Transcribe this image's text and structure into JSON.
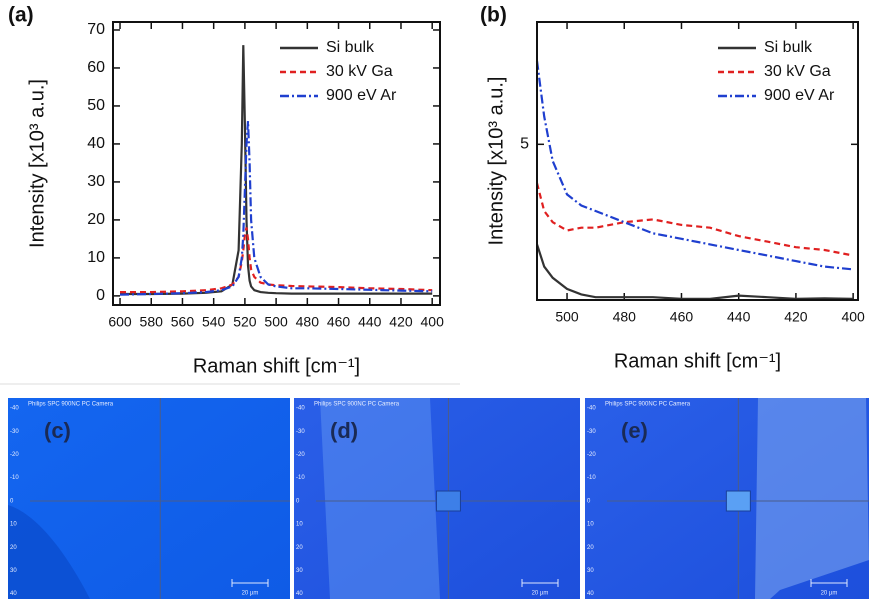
{
  "chart_data": [
    {
      "type": "line",
      "panel_label": "(a)",
      "x_label": "Raman shift [cm⁻¹]",
      "y_label": "Intensity [x10³ a.u.]",
      "xlim": [
        604.5,
        395
      ],
      "xticks": [
        600,
        580,
        560,
        540,
        520,
        500,
        480,
        460,
        440,
        420,
        400
      ],
      "ylim": [
        -2.4,
        72.1
      ],
      "yticks": [
        0,
        10,
        20,
        30,
        40,
        50,
        60,
        70
      ],
      "legend": "upper right",
      "x": [
        600,
        580,
        560,
        545,
        535,
        528,
        524,
        522,
        521,
        520,
        519,
        518,
        517,
        516,
        514,
        510,
        505,
        500,
        490,
        480,
        460,
        440,
        420,
        400
      ],
      "series": [
        {
          "name": "Si bulk",
          "color": "#333333",
          "dash": "solid",
          "values": [
            0.5,
            0.5,
            0.6,
            0.8,
            1.2,
            3,
            12,
            40,
            66,
            45,
            20,
            8,
            4,
            2.5,
            1.5,
            1,
            0.8,
            0.7,
            0.6,
            0.6,
            0.6,
            0.6,
            0.6,
            0.6
          ]
        },
        {
          "name": "30 kV Ga",
          "color": "#e02020",
          "dash": "dashed",
          "values": [
            1,
            1,
            1.2,
            1.5,
            2,
            3,
            5,
            9,
            12,
            16,
            18,
            15,
            10,
            7,
            5,
            3.5,
            3,
            2.8,
            2.6,
            2.5,
            2.3,
            2,
            1.8,
            1.5
          ]
        },
        {
          "name": "900 eV Ar",
          "color": "#1f3fcf",
          "dash": "dashdot",
          "values": [
            0.3,
            0.5,
            0.7,
            1,
            1.5,
            2.5,
            5,
            10,
            16,
            28,
            40,
            46,
            35,
            20,
            10,
            5,
            3,
            2.5,
            2,
            2,
            1.8,
            1.6,
            1.4,
            1.2
          ]
        }
      ]
    },
    {
      "type": "line",
      "panel_label": "(b)",
      "x_label": "Raman shift [cm⁻¹]",
      "y_label": "Intensity [x10³ a.u.]",
      "xlim": [
        510.5,
        398.3
      ],
      "xticks": [
        500,
        480,
        460,
        440,
        420,
        400
      ],
      "ylim": [
        2.2,
        7.2
      ],
      "yticks": [
        5
      ],
      "legend": "upper right",
      "x": [
        510.5,
        508,
        505,
        500,
        495,
        490,
        480,
        470,
        460,
        450,
        440,
        430,
        420,
        410,
        400
      ],
      "series": [
        {
          "name": "Si bulk",
          "color": "#333333",
          "dash": "solid",
          "values": [
            3.2,
            2.8,
            2.6,
            2.4,
            2.3,
            2.25,
            2.25,
            2.25,
            2.22,
            2.22,
            2.28,
            2.25,
            2.22,
            2.23,
            2.22
          ]
        },
        {
          "name": "30 kV Ga",
          "color": "#e02020",
          "dash": "dashed",
          "values": [
            4.3,
            3.8,
            3.6,
            3.45,
            3.5,
            3.5,
            3.6,
            3.65,
            3.55,
            3.5,
            3.35,
            3.25,
            3.15,
            3.1,
            3.0
          ]
        },
        {
          "name": "900 eV Ar",
          "color": "#1f3fcf",
          "dash": "dashdot",
          "values": [
            6.5,
            5.5,
            4.7,
            4.1,
            3.9,
            3.8,
            3.6,
            3.4,
            3.3,
            3.2,
            3.1,
            3.0,
            2.9,
            2.8,
            2.75
          ]
        }
      ]
    }
  ],
  "images": [
    {
      "label": "(c)"
    },
    {
      "label": "(d)"
    },
    {
      "label": "(e)"
    }
  ],
  "camera_caption": "Philips SPC 900NC PC Camera",
  "image_axis_ticks": [
    -40,
    -30,
    -20,
    -10,
    0,
    10,
    20,
    30,
    40
  ],
  "scale_label": "20 µm"
}
